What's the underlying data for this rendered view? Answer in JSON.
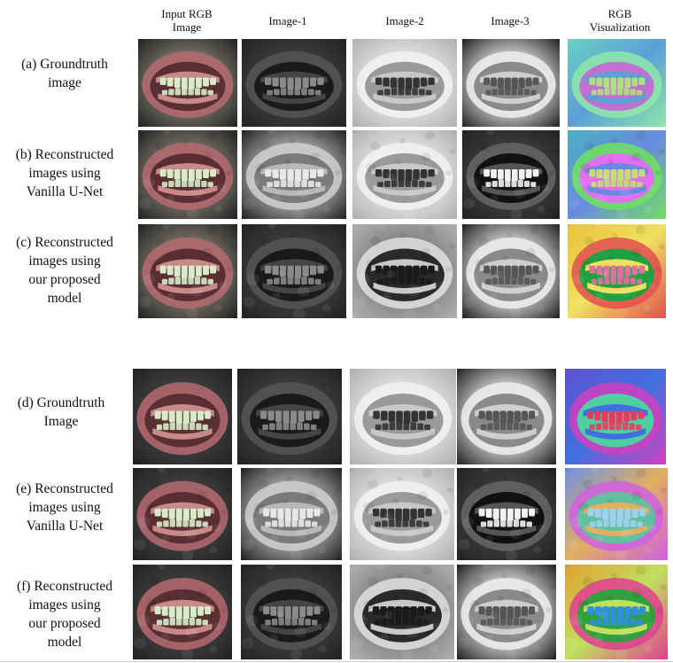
{
  "headers": [
    "Input RGB\nImage",
    "Image-1",
    "Image-2",
    "Image-3",
    "RGB\nVisualization"
  ],
  "rows": [
    {
      "label": "(a) Groundtruth\nimage"
    },
    {
      "label": "(b) Reconstructed\nimages using\nVanilla U-Net"
    },
    {
      "label": "(c) Reconstructed\nimages using\nour proposed\nmodel"
    },
    {
      "label": "(d) Groundtruth\nImage"
    },
    {
      "label": "(e) Reconstructed\nimages using\nVanilla U-Net"
    },
    {
      "label": "(f) Reconstructed\nimages using\nour proposed\nmodel"
    }
  ],
  "image_kinds": [
    "rgb-input",
    "gray",
    "gray-inverse",
    "gray-dark",
    "false-color"
  ],
  "colors": {
    "rgb_gum": "#b06a6a",
    "rgb_teeth": "#dfeecf",
    "vis_a": "#6ad0c0",
    "vis_c": "#e8c33a",
    "vis_d": "#6050d0",
    "vis_f": "#e0a030"
  }
}
